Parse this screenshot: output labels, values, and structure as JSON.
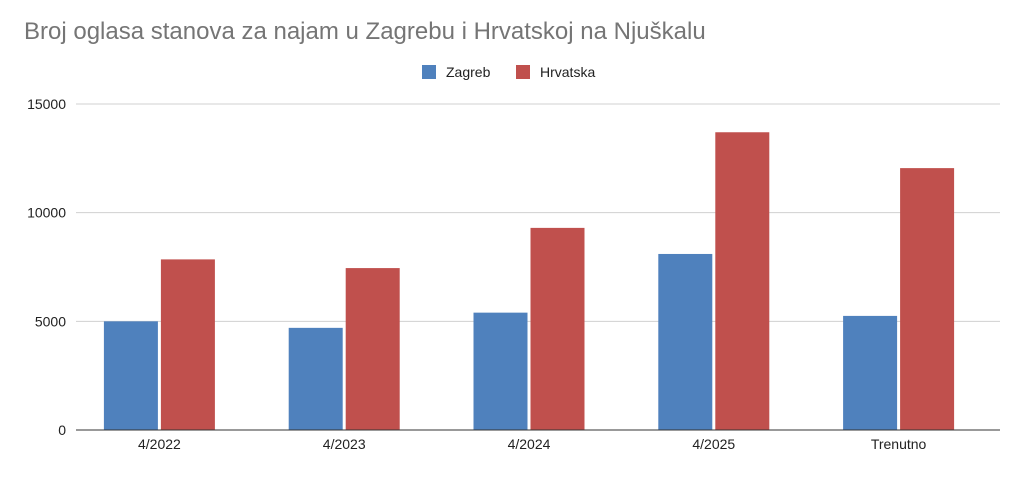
{
  "chart_data": {
    "type": "bar",
    "title": "Broj oglasa stanova za najam u Zagrebu i Hrvatskoj na Njuškalu",
    "categories": [
      "4/2022",
      "4/2023",
      "4/2024",
      "4/2025",
      "Trenutno"
    ],
    "series": [
      {
        "name": "Zagreb",
        "color": "#4f81bd",
        "values": [
          5000,
          4700,
          5400,
          8100,
          5250
        ]
      },
      {
        "name": "Hrvatska",
        "color": "#c0504d",
        "values": [
          7850,
          7450,
          9300,
          13700,
          12050
        ]
      }
    ],
    "ylim": [
      0,
      15000
    ],
    "yticks": [
      0,
      5000,
      10000,
      15000
    ],
    "grid": true,
    "legend_position": "top-center"
  }
}
